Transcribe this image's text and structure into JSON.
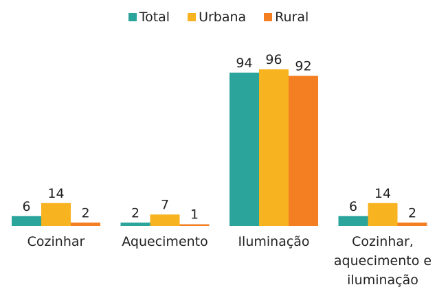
{
  "chart_data": {
    "type": "bar",
    "categories": [
      "Cozinhar",
      "Aquecimento",
      "Iluminação",
      "Cozinhar, aquecimento e iluminação"
    ],
    "series": [
      {
        "name": "Total",
        "color": "#2ba59c",
        "values": [
          6,
          2,
          94,
          6
        ]
      },
      {
        "name": "Urbana",
        "color": "#f8b320",
        "values": [
          14,
          7,
          96,
          14
        ]
      },
      {
        "name": "Rural",
        "color": "#f47f22",
        "values": [
          2,
          1,
          92,
          2
        ]
      }
    ],
    "ylim": [
      0,
      100
    ],
    "legend": "top"
  }
}
